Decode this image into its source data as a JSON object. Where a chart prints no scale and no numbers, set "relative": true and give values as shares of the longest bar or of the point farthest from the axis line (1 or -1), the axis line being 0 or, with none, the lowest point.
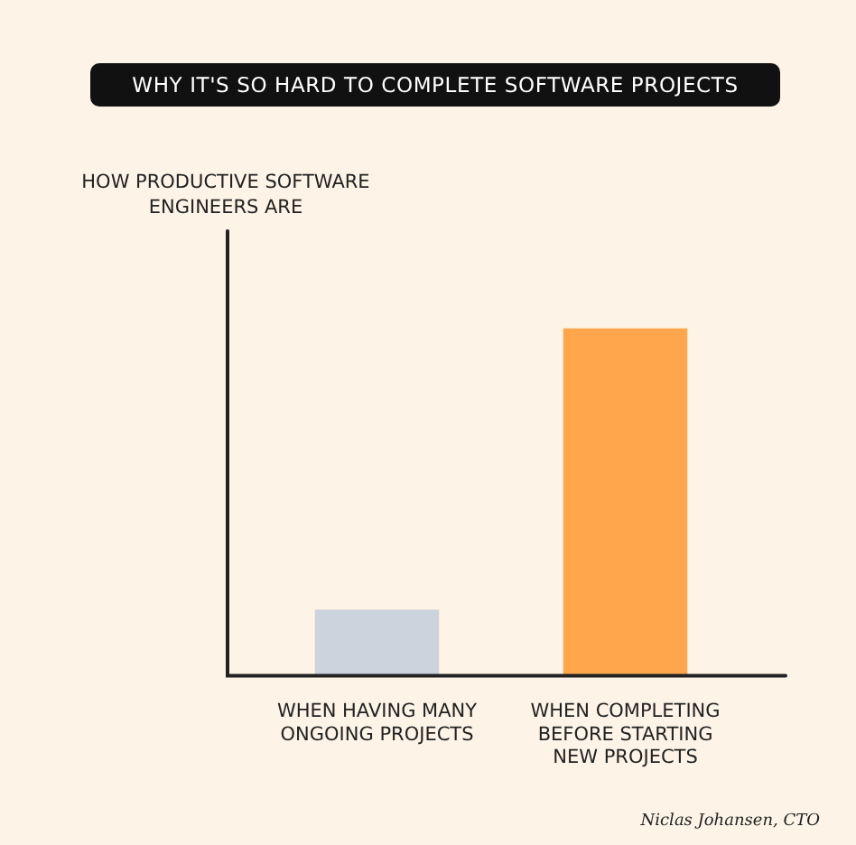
{
  "chart_data": {
    "type": "bar",
    "title": "WHY IT'S SO HARD TO COMPLETE SOFTWARE PROJECTS",
    "categories": [
      "WHEN HAVING MANY ONGOING PROJECTS",
      "WHEN COMPLETING BEFORE STARTING NEW PROJECTS"
    ],
    "values": [
      0.19,
      1
    ],
    "colors": [
      "#cdd3dc",
      "#ffa64d"
    ],
    "relative": true,
    "annotations": [
      "HOW PRODUCTIVE SOFTWARE ENGINEERS ARE",
      "Niclas Johansen, CTO"
    ]
  }
}
